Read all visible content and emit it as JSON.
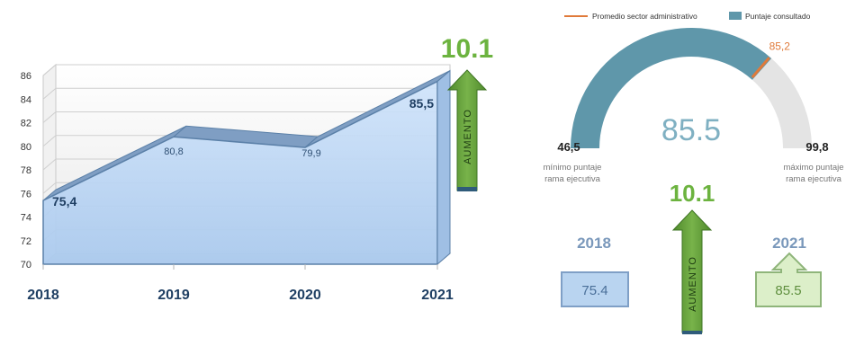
{
  "chart_data": [
    {
      "type": "area",
      "categories": [
        "2018",
        "2019",
        "2020",
        "2021"
      ],
      "values": [
        75.4,
        80.8,
        79.9,
        85.5
      ],
      "value_labels": [
        "75,4",
        "80,8",
        "79,9",
        "85,5"
      ],
      "ylim": [
        70,
        86
      ],
      "yticks": [
        "70",
        "72",
        "74",
        "76",
        "78",
        "80",
        "82",
        "84",
        "86"
      ],
      "grid": true,
      "annotation": {
        "value": "10.1",
        "arrow_label": "AUMENTO"
      },
      "colors": {
        "fill": "#bcd8f6",
        "line": "#5b80a8",
        "tick_text": "#1f3f63",
        "arrow": "#66a23c",
        "value": "#6cb33f"
      }
    },
    {
      "type": "gauge",
      "legend": [
        {
          "name": "Promedio sector administrativo",
          "color": "#e07a3a"
        },
        {
          "name": "Puntaje consultado",
          "color": "#5f97aa"
        }
      ],
      "min": 46.5,
      "max": 99.8,
      "value": 85.5,
      "average": 85.2,
      "min_label": "46,5",
      "max_label": "99,8",
      "value_label": "85.5",
      "average_label": "85,2",
      "min_caption": [
        "mínimo puntaje",
        "rama ejecutiva"
      ],
      "max_caption": [
        "máximo puntaje",
        "rama ejecutiva"
      ],
      "colors": {
        "value_arc": "#5f97aa",
        "rest_arc": "#e4e4e4",
        "average_mark": "#e07a3a",
        "value_text": "#7fb0c2"
      }
    }
  ],
  "comparison": {
    "increase_value": "10.1",
    "arrow_label": "AUMENTO",
    "year_start": "2018",
    "year_end": "2021",
    "value_start": "75.4",
    "value_end": "85.5",
    "colors": {
      "year_text": "#7a98bb",
      "start_box_fill": "#b9d4f0",
      "start_box_border": "#7f9fc6",
      "end_box_fill": "#dcefc9",
      "end_box_border": "#8fb57a",
      "arrow": "#66a23c",
      "value": "#6cb33f"
    }
  }
}
